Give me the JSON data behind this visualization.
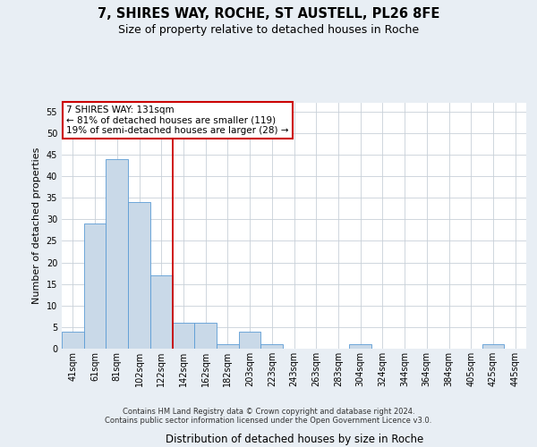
{
  "title1": "7, SHIRES WAY, ROCHE, ST AUSTELL, PL26 8FE",
  "title2": "Size of property relative to detached houses in Roche",
  "xlabel": "Distribution of detached houses by size in Roche",
  "ylabel": "Number of detached properties",
  "bin_labels": [
    "41sqm",
    "61sqm",
    "81sqm",
    "102sqm",
    "122sqm",
    "142sqm",
    "162sqm",
    "182sqm",
    "203sqm",
    "223sqm",
    "243sqm",
    "263sqm",
    "283sqm",
    "304sqm",
    "324sqm",
    "344sqm",
    "364sqm",
    "384sqm",
    "405sqm",
    "425sqm",
    "445sqm"
  ],
  "bar_values": [
    4,
    29,
    44,
    34,
    17,
    6,
    6,
    1,
    4,
    1,
    0,
    0,
    0,
    1,
    0,
    0,
    0,
    0,
    0,
    1,
    0
  ],
  "bar_color": "#c9d9e8",
  "bar_edge_color": "#5b9bd5",
  "red_line_x": 4.5,
  "annotation_line1": "7 SHIRES WAY: 131sqm",
  "annotation_line2": "← 81% of detached houses are smaller (119)",
  "annotation_line3": "19% of semi-detached houses are larger (28) →",
  "annotation_box_color": "#ffffff",
  "annotation_box_edge_color": "#cc0000",
  "footnote": "Contains HM Land Registry data © Crown copyright and database right 2024.\nContains public sector information licensed under the Open Government Licence v3.0.",
  "ylim": [
    0,
    57
  ],
  "yticks": [
    0,
    5,
    10,
    15,
    20,
    25,
    30,
    35,
    40,
    45,
    50,
    55
  ],
  "background_color": "#e8eef4",
  "plot_bg_color": "#ffffff",
  "grid_color": "#c8d0d8",
  "title1_fontsize": 10.5,
  "title2_fontsize": 9,
  "ylabel_fontsize": 8,
  "xlabel_fontsize": 8.5,
  "tick_fontsize": 7,
  "annot_fontsize": 7.5,
  "footnote_fontsize": 6
}
